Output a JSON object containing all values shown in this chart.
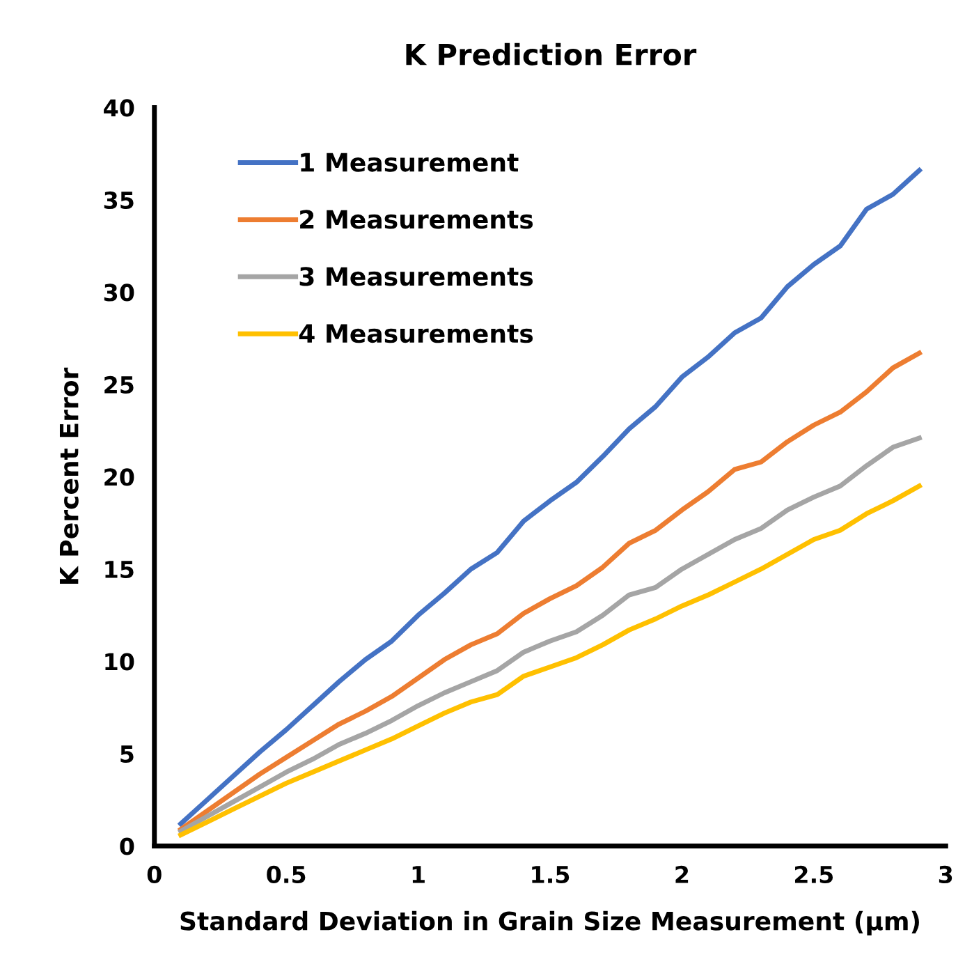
{
  "chart_data": {
    "type": "line",
    "title": "K Prediction Error",
    "xlabel": "Standard Deviation in Grain Size Measurement (µm)",
    "ylabel": "K Percent Error",
    "x": [
      0.1,
      0.2,
      0.3,
      0.4,
      0.5,
      0.6,
      0.7,
      0.8,
      0.9,
      1.0,
      1.1,
      1.2,
      1.3,
      1.4,
      1.5,
      1.6,
      1.7,
      1.8,
      1.9,
      2.0,
      2.1,
      2.2,
      2.3,
      2.4,
      2.5,
      2.6,
      2.7,
      2.8,
      2.9
    ],
    "series": [
      {
        "name": "1 Measurement",
        "color": "#4472c4",
        "values": [
          1.2,
          2.5,
          3.8,
          5.1,
          6.3,
          7.6,
          8.9,
          10.1,
          11.1,
          12.5,
          13.7,
          15.0,
          15.9,
          17.6,
          18.7,
          19.7,
          21.1,
          22.6,
          23.8,
          25.4,
          26.5,
          27.8,
          28.6,
          30.3,
          31.5,
          32.5,
          34.5,
          35.3,
          36.6
        ]
      },
      {
        "name": "2 Measurements",
        "color": "#ed7d31",
        "values": [
          0.9,
          1.9,
          2.9,
          3.9,
          4.8,
          5.7,
          6.6,
          7.3,
          8.1,
          9.1,
          10.1,
          10.9,
          11.5,
          12.6,
          13.4,
          14.1,
          15.1,
          16.4,
          17.1,
          18.2,
          19.2,
          20.4,
          20.8,
          21.9,
          22.8,
          23.5,
          24.6,
          25.9,
          26.7
        ]
      },
      {
        "name": "3 Measurements",
        "color": "#a5a5a5",
        "values": [
          0.8,
          1.6,
          2.4,
          3.2,
          4.0,
          4.7,
          5.5,
          6.1,
          6.8,
          7.6,
          8.3,
          8.9,
          9.5,
          10.5,
          11.1,
          11.6,
          12.5,
          13.6,
          14.0,
          15.0,
          15.8,
          16.6,
          17.2,
          18.2,
          18.9,
          19.5,
          20.6,
          21.6,
          22.1
        ]
      },
      {
        "name": "4 Measurements",
        "color": "#ffc000",
        "values": [
          0.6,
          1.3,
          2.0,
          2.7,
          3.4,
          4.0,
          4.6,
          5.2,
          5.8,
          6.5,
          7.2,
          7.8,
          8.2,
          9.2,
          9.7,
          10.2,
          10.9,
          11.7,
          12.3,
          13.0,
          13.6,
          14.3,
          15.0,
          15.8,
          16.6,
          17.1,
          18.0,
          18.7,
          19.5
        ]
      }
    ],
    "xlim": [
      0,
      3
    ],
    "xticks": [
      0,
      0.5,
      1,
      1.5,
      2,
      2.5,
      3
    ],
    "ylim": [
      0,
      40
    ],
    "yticks": [
      0,
      5,
      10,
      15,
      20,
      25,
      30,
      35,
      40
    ],
    "grid": false,
    "legend": "top left",
    "marker": "none",
    "line_style": "solid"
  }
}
